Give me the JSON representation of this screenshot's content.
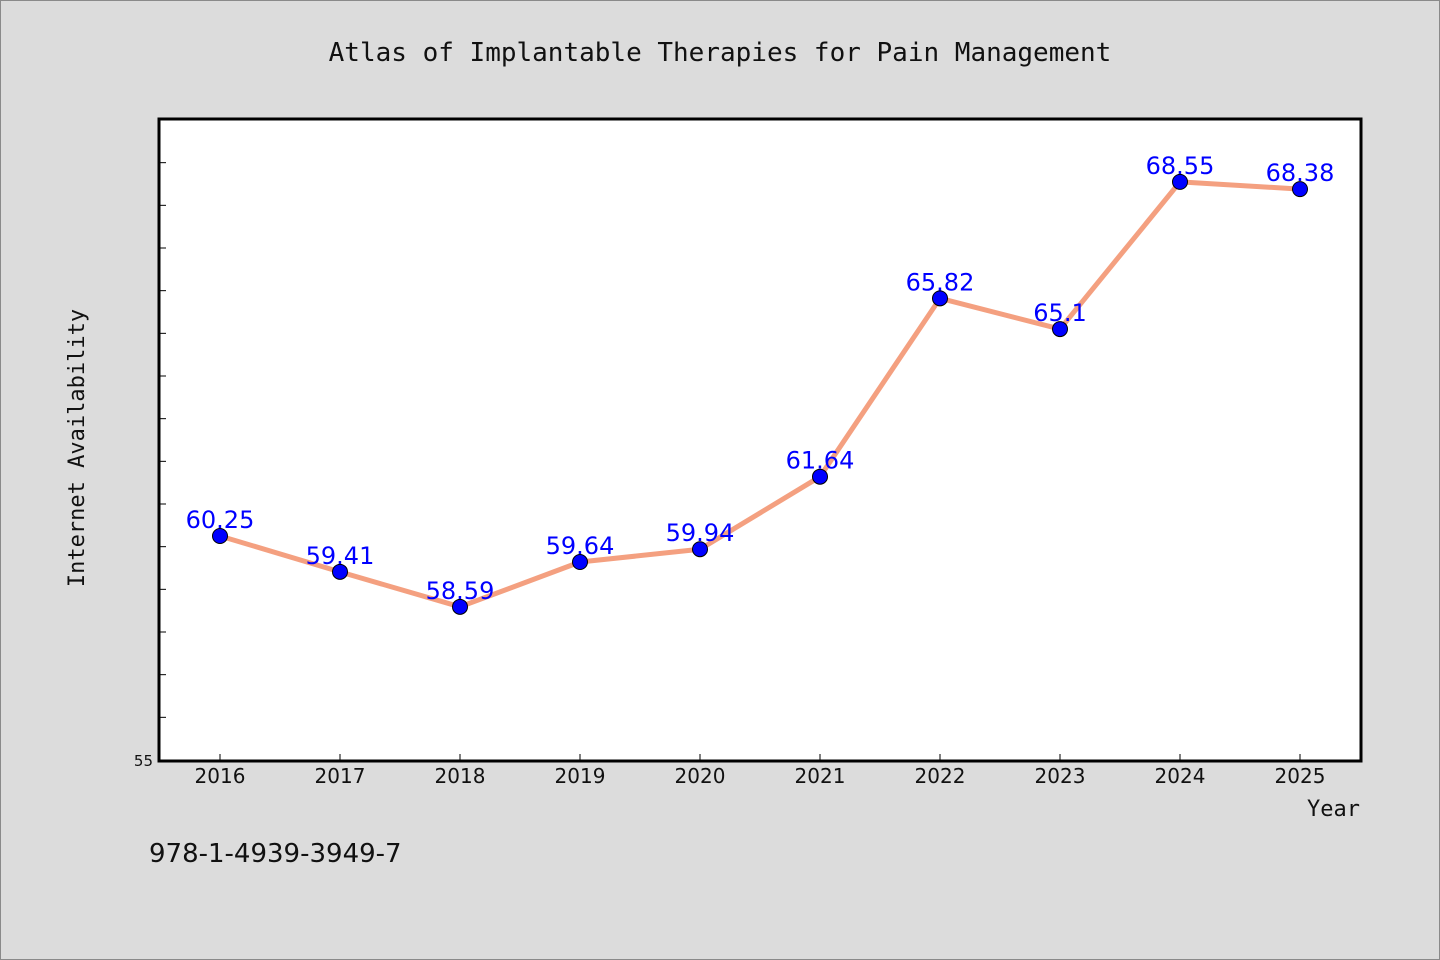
{
  "chart_data": {
    "type": "line",
    "title": "Atlas of Implantable Therapies for Pain Management",
    "xlabel": "Year",
    "ylabel": "Internet Availability",
    "categories": [
      "2016",
      "2017",
      "2018",
      "2019",
      "2020",
      "2021",
      "2022",
      "2023",
      "2024",
      "2025"
    ],
    "series": [
      {
        "values": [
          60.25,
          59.41,
          58.59,
          59.64,
          59.94,
          61.64,
          65.82,
          65.1,
          68.55,
          68.38
        ],
        "data_labels": [
          "60.25",
          "59.41",
          "58.59",
          "59.64",
          "59.94",
          "61.64",
          "65.82",
          "65.1",
          "68.55",
          "68.38"
        ]
      }
    ],
    "ylim": [
      55,
      70
    ],
    "y_tick_label": "55",
    "grid": false,
    "line_color": "#f4a080",
    "marker_color": "#0000ff",
    "label_color": "#0000ff"
  },
  "footer": {
    "isbn": "978-1-4939-3949-7"
  }
}
